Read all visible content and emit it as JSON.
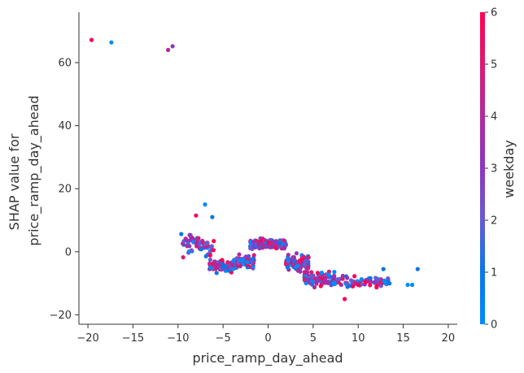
{
  "chart_data": {
    "type": "scatter",
    "title": "",
    "xlabel": "price_ramp_day_ahead",
    "ylabel_lines": [
      "SHAP value for",
      "price_ramp_day_ahead"
    ],
    "xlim": [
      -21,
      21
    ],
    "ylim": [
      -23,
      76
    ],
    "xticks": [
      -20,
      -15,
      -10,
      -5,
      0,
      5,
      10,
      15,
      20
    ],
    "yticks": [
      -20,
      0,
      20,
      40,
      60
    ],
    "grid": false,
    "colorbar": {
      "label": "weekday",
      "range": [
        0,
        6
      ],
      "ticks": [
        0,
        1,
        2,
        3,
        4,
        5,
        6
      ],
      "colors": [
        "#008bfb",
        "#0877e9",
        "#6a5ad1",
        "#8c37c1",
        "#b12a9c",
        "#dc1a74",
        "#ff0052"
      ]
    },
    "highlighted_points": [
      {
        "x": -19.6,
        "y": 67.2,
        "weekday": 6
      },
      {
        "x": -17.4,
        "y": 66.4,
        "weekday": 0
      },
      {
        "x": -11.1,
        "y": 64.0,
        "weekday": 4
      },
      {
        "x": -10.6,
        "y": 65.2,
        "weekday": 3
      },
      {
        "x": -7.0,
        "y": 15.0,
        "weekday": 0
      },
      {
        "x": -6.2,
        "y": 11.0,
        "weekday": 1
      },
      {
        "x": -8.0,
        "y": 11.5,
        "weekday": 6
      },
      {
        "x": 15.5,
        "y": -10.5,
        "weekday": 0
      },
      {
        "x": 16.0,
        "y": -10.5,
        "weekday": 0
      },
      {
        "x": 16.6,
        "y": -5.5,
        "weekday": 1
      },
      {
        "x": 12.8,
        "y": -5.5,
        "weekday": 1
      },
      {
        "x": 8.5,
        "y": -15.0,
        "weekday": 6
      }
    ],
    "clusters": [
      {
        "x_range": [
          -9.8,
          -6.0
        ],
        "y_center": 2.0,
        "y_spread": 5.0,
        "count": 60
      },
      {
        "x_range": [
          -6.5,
          -3.5
        ],
        "y_center": -4.5,
        "y_spread": 3.0,
        "count": 90
      },
      {
        "x_range": [
          -3.5,
          -1.5
        ],
        "y_center": -3.0,
        "y_spread": 3.0,
        "count": 60
      },
      {
        "x_range": [
          -2.0,
          2.0
        ],
        "y_center": 2.5,
        "y_spread": 2.0,
        "count": 160
      },
      {
        "x_range": [
          2.0,
          4.5
        ],
        "y_center": -3.5,
        "y_spread": 3.5,
        "count": 90
      },
      {
        "x_range": [
          4.0,
          7.5
        ],
        "y_center": -9.0,
        "y_spread": 3.5,
        "count": 90
      },
      {
        "x_range": [
          7.0,
          13.5
        ],
        "y_center": -9.5,
        "y_spread": 2.5,
        "count": 70
      }
    ]
  }
}
